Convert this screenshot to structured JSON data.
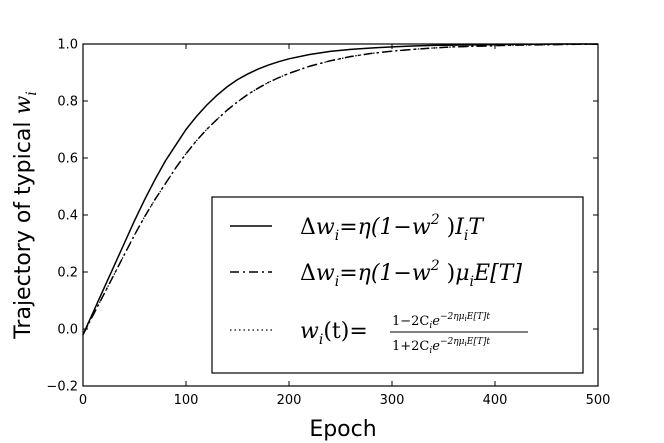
{
  "chart_data": {
    "type": "line",
    "title": "",
    "xlabel": "Epoch",
    "ylabel": "Trajectory of typical w_i",
    "ylabel_parts": {
      "text": "Trajectory of typical ",
      "math": "w",
      "sub": "i"
    },
    "xlim": [
      0,
      500
    ],
    "ylim": [
      -0.2,
      1.0
    ],
    "xticks": [
      "0",
      "100",
      "200",
      "300",
      "400",
      "500"
    ],
    "yticks": [
      "−0.2",
      "0.0",
      "0.2",
      "0.4",
      "0.6",
      "0.8",
      "1.0"
    ],
    "grid": false,
    "legend_position": "lower-right",
    "legend_entries": [
      {
        "label": "Δw_i = η(1−w_i²) I_i T",
        "style": "solid"
      },
      {
        "label": "Δw_i = η(1−w_i²) μ_i E[T]",
        "style": "dashdot"
      },
      {
        "label": "w_i(t) = (1−2C_i e^(−2ημ_i E[T]t)) / (1+2C_i e^(−2ημ_i E[T]t))",
        "style": "dotted"
      }
    ],
    "legend_math": {
      "e1": {
        "delta": "Δ",
        "w": "w",
        "i": "i",
        "eq": "=",
        "eta": "η(1−",
        "w2": "w",
        "sup2": "2",
        "close": ")",
        "I": "I",
        "T": "T"
      },
      "e2": {
        "delta": "Δ",
        "w": "w",
        "i": "i",
        "eq": "=",
        "eta": "η(1−",
        "w2": "w",
        "sup2": "2",
        "close": ")",
        "mu": "μ",
        "ET": "E[T]"
      },
      "e3": {
        "w": "w",
        "i": "i",
        "t": "(t)",
        "eq": "=",
        "num": "1−2C",
        "den": "1+2C",
        "exp": "e",
        "power": "−2ημ",
        "powerET": "E[T]t"
      }
    },
    "series": [
      {
        "style": "solid",
        "x": [
          0,
          10,
          20,
          30,
          40,
          50,
          60,
          70,
          80,
          90,
          100,
          110,
          120,
          130,
          140,
          150,
          160,
          170,
          180,
          190,
          200,
          220,
          240,
          260,
          280,
          300,
          320,
          340,
          360,
          380,
          400,
          420,
          440,
          460,
          480,
          500
        ],
        "y": [
          -0.02,
          0.06,
          0.14,
          0.22,
          0.3,
          0.38,
          0.455,
          0.525,
          0.59,
          0.645,
          0.7,
          0.745,
          0.785,
          0.82,
          0.85,
          0.875,
          0.895,
          0.912,
          0.926,
          0.938,
          0.948,
          0.963,
          0.974,
          0.981,
          0.986,
          0.99,
          0.993,
          0.995,
          0.996,
          0.997,
          0.998,
          0.999,
          0.999,
          1.0,
          1.0,
          1.0
        ]
      },
      {
        "style": "dashdot",
        "x": [
          0,
          10,
          20,
          30,
          40,
          50,
          60,
          70,
          80,
          90,
          100,
          110,
          120,
          130,
          140,
          150,
          160,
          170,
          180,
          190,
          200,
          220,
          240,
          260,
          280,
          300,
          320,
          340,
          360,
          380,
          400,
          420,
          440,
          460,
          480,
          500
        ],
        "y": [
          -0.02,
          0.05,
          0.12,
          0.19,
          0.26,
          0.33,
          0.395,
          0.455,
          0.51,
          0.565,
          0.615,
          0.66,
          0.7,
          0.735,
          0.768,
          0.797,
          0.823,
          0.845,
          0.865,
          0.882,
          0.897,
          0.922,
          0.941,
          0.956,
          0.967,
          0.975,
          0.981,
          0.986,
          0.99,
          0.992,
          0.994,
          0.996,
          0.997,
          0.998,
          0.999,
          0.999
        ]
      },
      {
        "style": "dotted",
        "x": [
          0,
          10,
          20,
          30,
          40,
          50,
          60,
          70,
          80,
          90,
          100,
          110,
          120,
          130,
          140,
          150,
          160,
          170,
          180,
          190,
          200,
          220,
          240,
          260,
          280,
          300,
          320,
          340,
          360,
          380,
          400,
          420,
          440,
          460,
          480,
          500
        ],
        "y": [
          -0.02,
          0.05,
          0.12,
          0.19,
          0.26,
          0.33,
          0.395,
          0.455,
          0.51,
          0.565,
          0.615,
          0.66,
          0.7,
          0.735,
          0.768,
          0.797,
          0.823,
          0.845,
          0.865,
          0.882,
          0.897,
          0.922,
          0.941,
          0.956,
          0.967,
          0.975,
          0.981,
          0.986,
          0.99,
          0.992,
          0.994,
          0.996,
          0.997,
          0.998,
          0.999,
          0.999
        ]
      }
    ]
  }
}
